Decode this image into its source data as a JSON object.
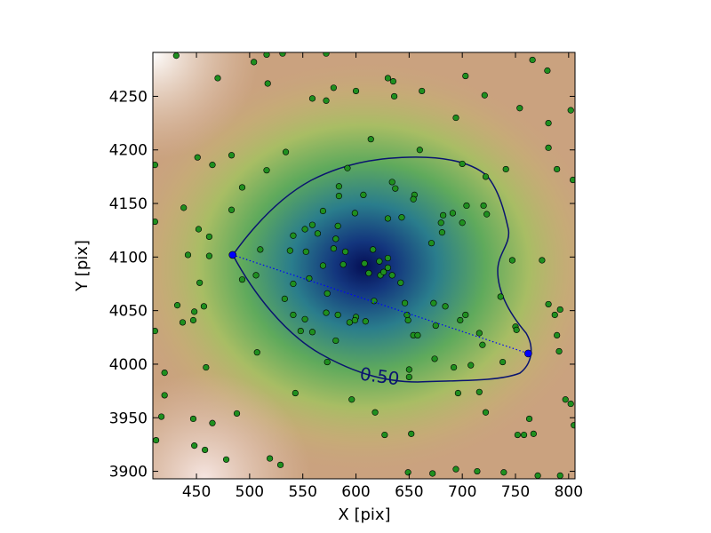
{
  "chart_data": {
    "type": "scatter",
    "xlabel": "X [pix]",
    "ylabel": "Y [pix]",
    "xlim": [
      409,
      806
    ],
    "ylim": [
      3893,
      4291
    ],
    "xticks": [
      450,
      500,
      550,
      600,
      650,
      700,
      750,
      800
    ],
    "yticks": [
      3900,
      3950,
      4000,
      4050,
      4100,
      4150,
      4200,
      4250
    ],
    "contour_label": "0.50",
    "points": {
      "color": "#1f8f1f",
      "x": [
        431,
        504,
        516,
        531,
        572,
        766,
        780,
        470,
        517,
        630,
        635,
        662,
        703,
        559,
        579,
        572,
        600,
        636,
        721,
        754,
        694,
        781,
        802,
        614,
        660,
        781,
        534,
        411,
        451,
        483,
        516,
        465,
        789,
        804,
        592,
        700,
        741,
        722,
        634,
        637,
        655,
        584,
        584,
        607,
        493,
        438,
        483,
        452,
        462,
        411,
        442,
        462,
        510,
        541,
        564,
        559,
        583,
        599,
        630,
        643,
        654,
        682,
        691,
        704,
        720,
        723,
        700,
        680,
        681,
        671,
        581,
        569,
        552,
        579,
        590,
        608,
        616,
        622,
        630,
        630,
        623,
        612,
        626,
        634,
        642,
        588,
        569,
        553,
        538,
        506,
        493,
        453,
        457,
        432,
        448,
        447,
        437,
        411,
        541,
        556,
        533,
        573,
        541,
        552,
        572,
        548,
        559,
        583,
        594,
        600,
        581,
        599,
        609,
        617,
        646,
        648,
        649,
        654,
        658,
        673,
        684,
        675,
        698,
        703,
        716,
        719,
        736,
        747,
        750,
        751,
        775,
        781,
        787,
        789,
        792,
        791,
        507,
        573,
        650,
        650,
        674,
        692,
        696,
        716,
        738,
        543,
        596,
        618,
        627,
        652,
        488,
        447,
        465,
        417,
        420,
        420,
        459,
        412,
        448,
        458,
        478,
        519,
        529,
        649,
        672,
        694,
        714,
        739,
        752,
        758,
        767,
        771,
        792,
        763,
        722,
        708,
        797,
        802,
        805
      ],
      "y": [
        4288,
        4282,
        4289,
        4290,
        4290,
        4284,
        4274,
        4267,
        4262,
        4267,
        4264,
        4255,
        4269,
        4248,
        4258,
        4246,
        4255,
        4250,
        4251,
        4239,
        4230,
        4225,
        4237,
        4210,
        4200,
        4202,
        4198,
        4186,
        4193,
        4195,
        4181,
        4186,
        4182,
        4172,
        4183,
        4187,
        4182,
        4175,
        4170,
        4164,
        4158,
        4166,
        4157,
        4158,
        4165,
        4146,
        4144,
        4126,
        4119,
        4133,
        4102,
        4101,
        4107,
        4120,
        4122,
        4130,
        4129,
        4141,
        4136,
        4137,
        4154,
        4139,
        4141,
        4148,
        4148,
        4140,
        4132,
        4132,
        4123,
        4113,
        4117,
        4143,
        4126,
        4108,
        4105,
        4094,
        4107,
        4096,
        4099,
        4090,
        4083,
        4085,
        4086,
        4083,
        4076,
        4093,
        4092,
        4105,
        4106,
        4083,
        4079,
        4076,
        4054,
        4055,
        4049,
        4041,
        4039,
        4031,
        4075,
        4080,
        4061,
        4066,
        4046,
        4042,
        4048,
        4031,
        4030,
        4046,
        4039,
        4044,
        4022,
        4041,
        4040,
        4059,
        4057,
        4046,
        4041,
        4027,
        4027,
        4057,
        4054,
        4036,
        4041,
        4046,
        4029,
        4018,
        4063,
        4097,
        4035,
        4032,
        4097,
        4056,
        4046,
        4027,
        4051,
        4012,
        4011,
        4002,
        3995,
        3988,
        4005,
        3997,
        3973,
        3974,
        4002,
        3973,
        3967,
        3955,
        3934,
        3935,
        3954,
        3949,
        3945,
        3951,
        3971,
        3992,
        3997,
        3929,
        3924,
        3920,
        3911,
        3912,
        3906,
        3899,
        3898,
        3902,
        3900,
        3899,
        3934,
        3934,
        3935,
        3896,
        3896,
        3949,
        3955,
        3999,
        3967,
        3963,
        3943
      ]
    },
    "endpoints": {
      "color": "#0000ff",
      "x": [
        484,
        762
      ],
      "y": [
        4102,
        4010
      ]
    }
  }
}
